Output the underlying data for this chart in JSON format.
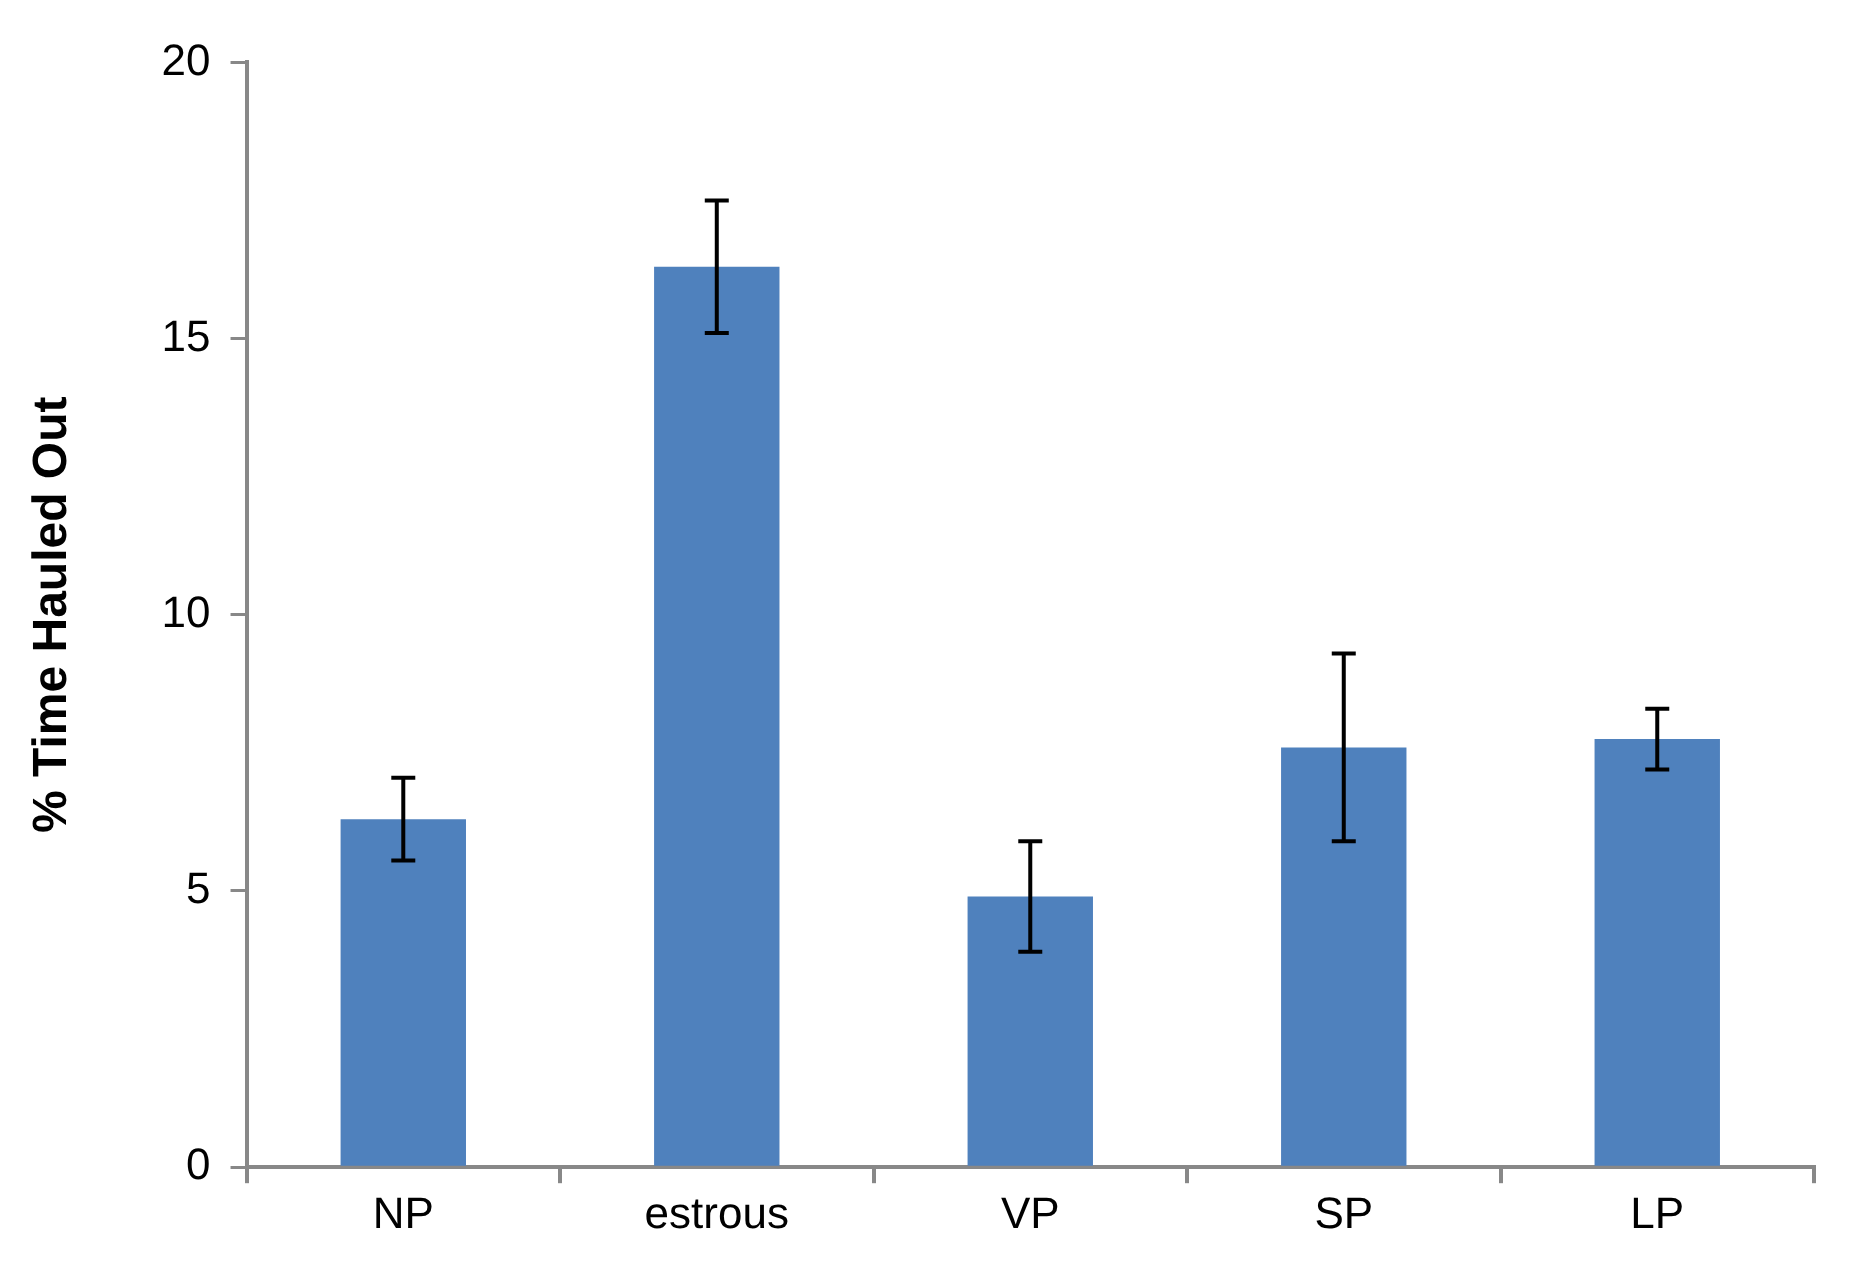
{
  "chart_data": {
    "type": "bar",
    "ylabel": "% Time Hauled Out",
    "categories": [
      "NP",
      "estrous",
      "VP",
      "SP",
      "LP"
    ],
    "series": [
      {
        "color": "#4f81bd",
        "values": [
          6.3,
          16.3,
          4.9,
          7.6,
          7.75
        ],
        "errors": [
          0.75,
          1.2,
          1.0,
          1.7,
          0.55
        ]
      }
    ],
    "ylim": [
      0,
      20
    ],
    "yticks": [
      0,
      5,
      10,
      15,
      20
    ],
    "grid": false,
    "legend": false
  }
}
